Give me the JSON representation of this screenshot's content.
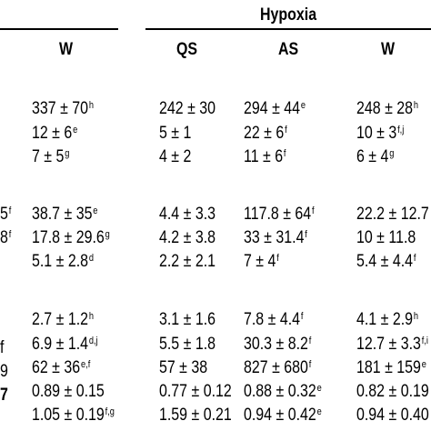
{
  "header": {
    "group": "Hypoxia",
    "columns": {
      "w1": "W",
      "qs": "QS",
      "as": "AS",
      "w2": "W"
    }
  },
  "left_fragments": {
    "r4": "5",
    "r4_sup": "f",
    "r5": "8",
    "r5_sup": "f",
    "r8": "f",
    "r9": "9",
    "r10": "7"
  },
  "rows": [
    {
      "w1": "337 ± 70",
      "w1_sup": "h",
      "qs": "242 ± 30",
      "qs_sup": "",
      "as": "294 ± 44",
      "as_sup": "e",
      "w2": "248 ± 28",
      "w2_sup": "h"
    },
    {
      "w1": "12 ± 6",
      "w1_sup": "e",
      "qs": "5 ± 1",
      "qs_sup": "",
      "as": "22 ± 6",
      "as_sup": "f",
      "w2": "10 ± 3",
      "w2_sup": "f,j"
    },
    {
      "w1": "7 ± 5",
      "w1_sup": "g",
      "qs": "4 ± 2",
      "qs_sup": "",
      "as": "11 ± 6",
      "as_sup": "f",
      "w2": "6 ± 4",
      "w2_sup": "g"
    },
    {
      "w1": "38.7 ± 35",
      "w1_sup": "e",
      "qs": "4.4 ± 3.3",
      "qs_sup": "",
      "as": "117.8 ± 64",
      "as_sup": "f",
      "w2": "22.2 ± 12.7",
      "w2_sup": ""
    },
    {
      "w1": "17.8 ± 29.6",
      "w1_sup": "g",
      "qs": "4.2 ± 3.8",
      "qs_sup": "",
      "as": "33 ± 31.4",
      "as_sup": "f",
      "w2": "10 ± 11.8",
      "w2_sup": ""
    },
    {
      "w1": "5.1 ± 2.8",
      "w1_sup": "d",
      "qs": "2.2 ± 2.1",
      "qs_sup": "",
      "as": "7 ± 4",
      "as_sup": "f",
      "w2": "5.4 ± 4.4",
      "w2_sup": "f"
    },
    {
      "w1": "2.7 ± 1.2",
      "w1_sup": "h",
      "qs": "3.1 ± 1.6",
      "qs_sup": "",
      "as": "7.8 ± 4.4",
      "as_sup": "f",
      "w2": "4.1 ± 2.9",
      "w2_sup": "h"
    },
    {
      "w1": "6.9 ± 1.4",
      "w1_sup": "d,j",
      "qs": "5.5 ± 1.8",
      "qs_sup": "",
      "as": "30.3 ± 8.2",
      "as_sup": "f",
      "w2": "12.7 ± 3.3",
      "w2_sup": "f,i"
    },
    {
      "w1": "62 ± 36",
      "w1_sup": "e,f",
      "qs": "57 ± 38",
      "qs_sup": "",
      "as": "827 ± 680",
      "as_sup": "f",
      "w2": "181 ± 159",
      "w2_sup": "e"
    },
    {
      "w1": "0.89 ± 0.15",
      "w1_sup": "",
      "qs": "0.77 ± 0.12",
      "qs_sup": "",
      "as": "0.88 ± 0.32",
      "as_sup": "e",
      "w2": "0.82 ± 0.19",
      "w2_sup": ""
    },
    {
      "w1": "1.05 ± 0.19",
      "w1_sup": "f,g",
      "qs": "1.59 ± 0.21",
      "qs_sup": "",
      "as": "0.94 ± 0.42",
      "as_sup": "e",
      "w2": "0.94 ± 0.40",
      "w2_sup": ""
    }
  ]
}
